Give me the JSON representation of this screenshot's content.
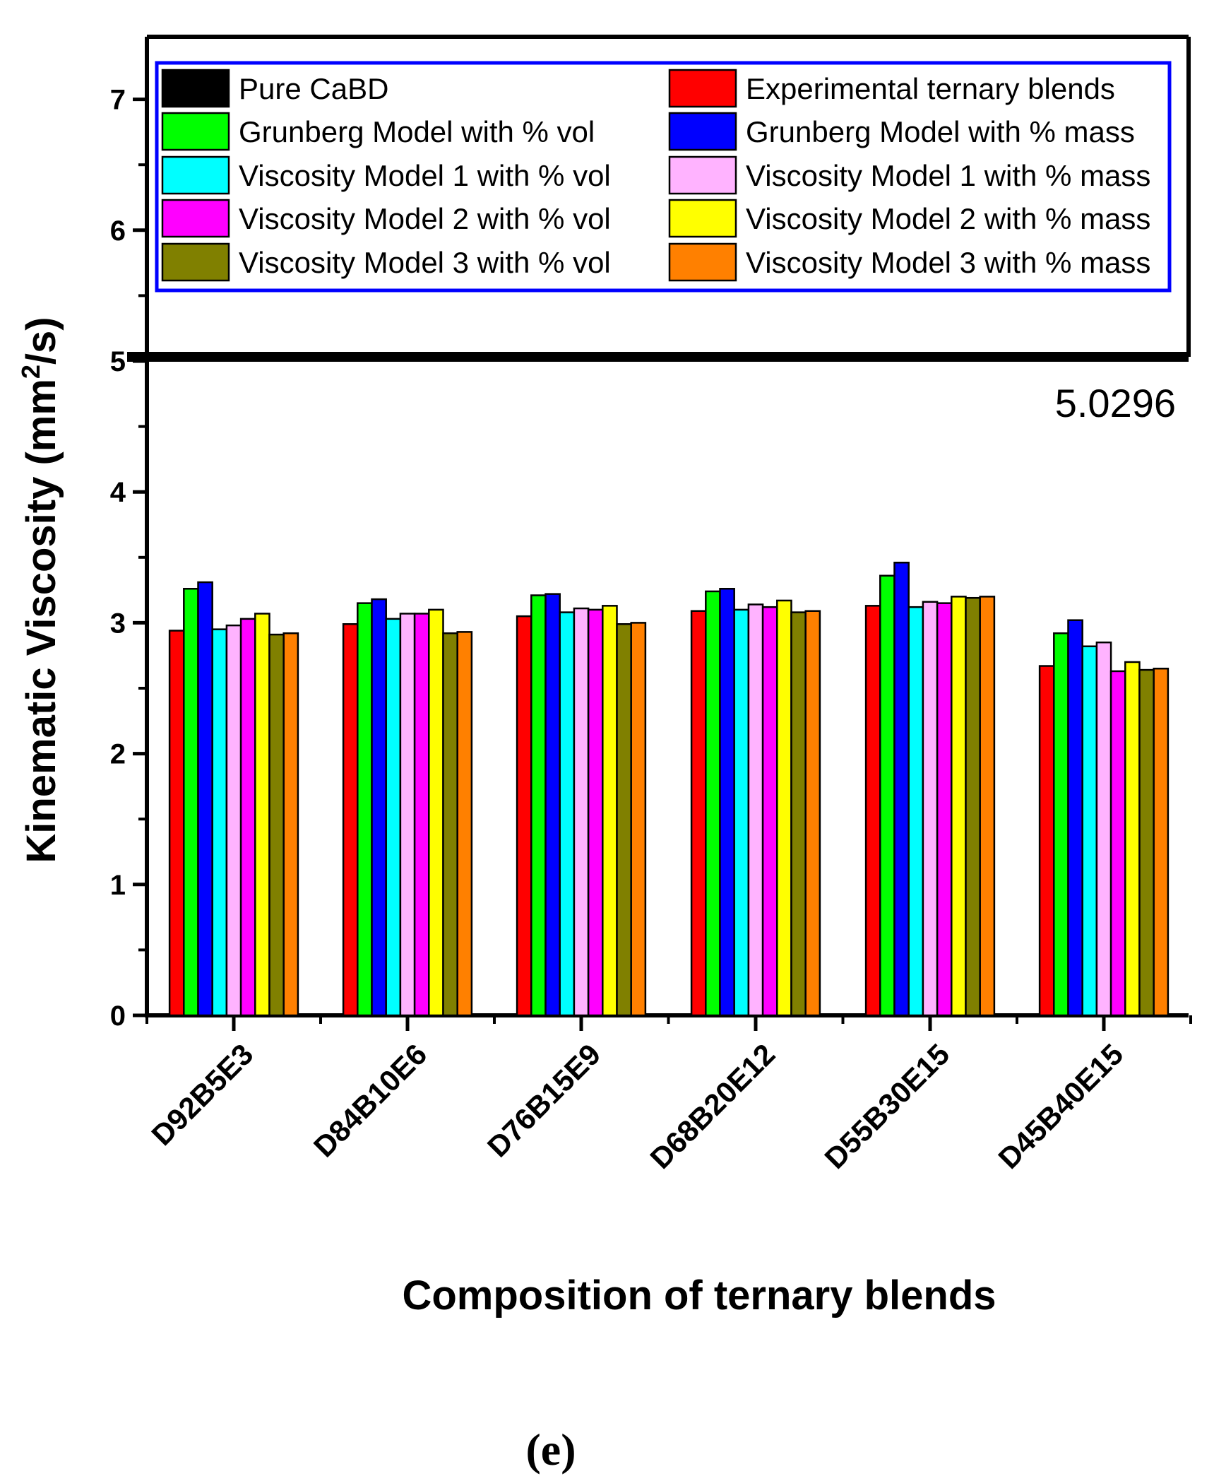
{
  "chart_data": {
    "type": "bar",
    "title": "",
    "xlabel": "Composition of ternary blends",
    "ylabel": "Kinematic Viscosity (mm",
    "ylabel_sup": "2",
    "ylabel_tail": "/s)",
    "ylim": [
      0,
      7.5
    ],
    "y_ticks": [
      "0",
      "1",
      "2",
      "3",
      "4",
      "5",
      "6",
      "7"
    ],
    "axis_break": 5.0,
    "categories": [
      "D92B5E3",
      "D84B10E6",
      "D76B15E9",
      "D68B20E12",
      "D55B30E15",
      "D45B40E15"
    ],
    "series": [
      {
        "name": "Pure CaBD",
        "color": "#000000",
        "values": [
          null,
          null,
          null,
          null,
          null,
          null
        ]
      },
      {
        "name": "Experimental ternary blends",
        "color": "#ff0000",
        "values": [
          2.94,
          2.99,
          3.05,
          3.09,
          3.13,
          2.67
        ]
      },
      {
        "name": "Grunberg Model with % vol",
        "color": "#00ff00",
        "values": [
          3.26,
          3.15,
          3.21,
          3.24,
          3.36,
          2.92
        ]
      },
      {
        "name": "Grunberg Model with % mass",
        "color": "#0000ff",
        "values": [
          3.31,
          3.18,
          3.22,
          3.26,
          3.46,
          3.02
        ]
      },
      {
        "name": "Viscosity Model 1 with % vol",
        "color": "#00ffff",
        "values": [
          2.95,
          3.03,
          3.08,
          3.1,
          3.12,
          2.82
        ]
      },
      {
        "name": "Viscosity Model 1 with % mass",
        "color": "#ffb3ff",
        "values": [
          2.98,
          3.07,
          3.11,
          3.14,
          3.16,
          2.85
        ]
      },
      {
        "name": "Viscosity Model 2 with % vol",
        "color": "#ff00ff",
        "values": [
          3.03,
          3.07,
          3.1,
          3.12,
          3.15,
          2.63
        ]
      },
      {
        "name": "Viscosity Model 2 with % mass",
        "color": "#ffff00",
        "values": [
          3.07,
          3.1,
          3.13,
          3.17,
          3.2,
          2.7
        ]
      },
      {
        "name": "Viscosity Model 3 with % vol",
        "color": "#808000",
        "values": [
          2.91,
          2.92,
          2.99,
          3.08,
          3.19,
          2.64
        ]
      },
      {
        "name": "Viscosity Model 3 with % mass",
        "color": "#ff8000",
        "values": [
          2.92,
          2.93,
          3.0,
          3.09,
          3.2,
          2.65
        ]
      }
    ],
    "annotations": [
      "5.0296"
    ],
    "legend_position": "top",
    "panel_label": "(e)"
  }
}
